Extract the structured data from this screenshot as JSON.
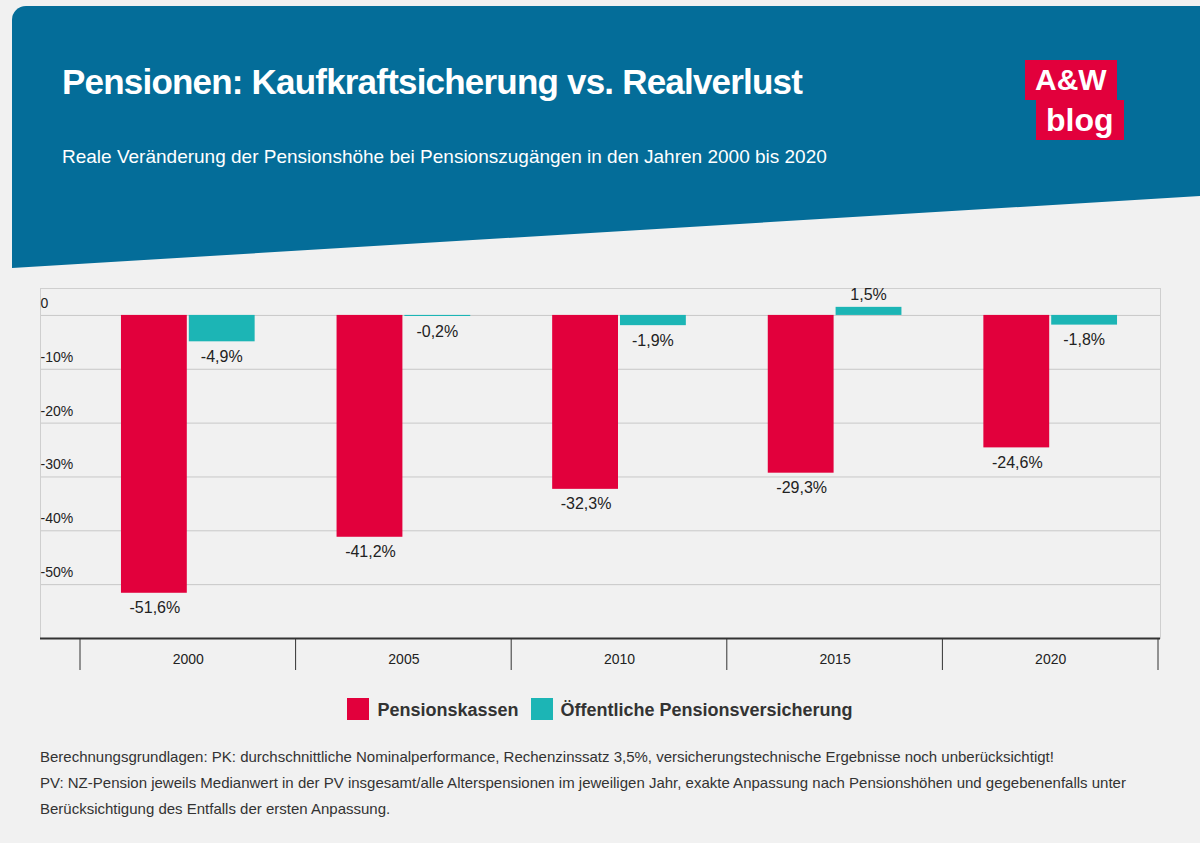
{
  "chart_data": {
    "type": "bar",
    "title": "Pensionen: Kaufkraftsicherung vs. Realverlust",
    "subtitle": "Reale Veränderung der Pensionshöhe bei Pensionszugängen in den Jahren 2000 bis 2020",
    "logo": [
      "A&W",
      "blog"
    ],
    "categories": [
      "2000",
      "2005",
      "2010",
      "2015",
      "2020"
    ],
    "series": [
      {
        "name": "Pensionskassen",
        "color": "#e2003c",
        "values": [
          -51.6,
          -41.2,
          -32.3,
          -29.3,
          -24.6
        ],
        "value_labels": [
          "-51,6%",
          "-41,2%",
          "-32,3%",
          "-29,3%",
          "-24,6%"
        ]
      },
      {
        "name": "Öffentliche Pensionsversicherung",
        "color": "#1cb5b5",
        "values": [
          -4.9,
          -0.2,
          -1.9,
          1.5,
          -1.8
        ],
        "value_labels": [
          "-4,9%",
          "-0,2%",
          "-1,9%",
          "1,5%",
          "-1,8%"
        ]
      }
    ],
    "ylim": [
      -60,
      5
    ],
    "yticks": [
      0,
      {
        "value": -10,
        "label": "-10%"
      },
      {
        "value": -20,
        "label": "-20%"
      },
      {
        "value": -30,
        "label": "-30%"
      },
      {
        "value": -40,
        "label": "-40%"
      },
      {
        "value": -50,
        "label": "-50%"
      }
    ],
    "grid": true,
    "legend": "bottom",
    "data_labels": true,
    "notes": [
      "Berechnungsgrundlagen: PK: durchschnittliche Nominalperformance, Rechenzinssatz 3,5%, versicherungstechnische Ergebnisse noch unberücksichtigt!",
      "PV: NZ-Pension jeweils Medianwert in der PV insgesamt/alle Alterspensionen im jeweiligen Jahr, exakte Anpassung nach Pensionshöhen und gegebenenfalls unter Berücksichtigung des Entfalls der ersten Anpassung."
    ]
  }
}
